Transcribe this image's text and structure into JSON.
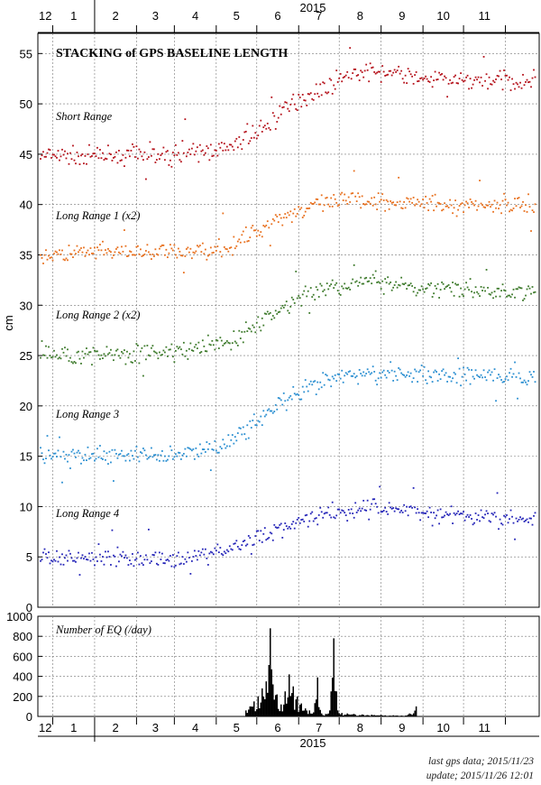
{
  "chart_data": [
    {
      "type": "scatter",
      "title": "STACKING of GPS BASELINE LENGTH",
      "year_label": "2015",
      "ylabel": "cm",
      "ylim": [
        0,
        57
      ],
      "yticks": [
        0,
        5,
        10,
        15,
        20,
        25,
        30,
        35,
        40,
        45,
        50,
        55
      ],
      "x_month_labels": [
        "12",
        "1",
        "2",
        "3",
        "4",
        "5",
        "6",
        "7",
        "8",
        "9",
        "10",
        "11"
      ],
      "x_range": [
        "2014-11-20",
        "2015-11-26"
      ],
      "grid": true,
      "series": [
        {
          "name": "Short Range",
          "color": "#b5121b",
          "x": [
            "2014-12-01",
            "2015-01-01",
            "2015-02-01",
            "2015-03-01",
            "2015-03-20",
            "2015-04-10",
            "2015-04-25",
            "2015-05-10",
            "2015-05-25",
            "2015-06-10",
            "2015-06-25",
            "2015-07-05",
            "2015-07-25",
            "2015-08-15",
            "2015-09-01",
            "2015-09-20",
            "2015-10-10",
            "2015-11-01",
            "2015-11-23"
          ],
          "y": [
            44.8,
            44.8,
            44.9,
            44.8,
            45.2,
            45.6,
            46.5,
            48.0,
            50.0,
            51.0,
            51.8,
            53.0,
            53.2,
            53.0,
            52.4,
            52.3,
            52.4,
            52.3,
            52.2
          ]
        },
        {
          "name": "Long Range 1 (x2)",
          "color": "#e8701e",
          "x": [
            "2014-12-01",
            "2015-01-01",
            "2015-02-01",
            "2015-03-01",
            "2015-03-25",
            "2015-04-15",
            "2015-05-01",
            "2015-05-20",
            "2015-06-10",
            "2015-07-01",
            "2015-07-20",
            "2015-08-15",
            "2015-09-10",
            "2015-10-10",
            "2015-11-01",
            "2015-11-23"
          ],
          "y": [
            35.0,
            35.2,
            35.3,
            35.2,
            35.5,
            36.0,
            37.4,
            38.8,
            39.8,
            40.3,
            40.5,
            40.3,
            40.0,
            40.0,
            40.0,
            40.0
          ]
        },
        {
          "name": "Long Range 2 (x2)",
          "color": "#3d7a2b",
          "x": [
            "2014-12-01",
            "2015-01-01",
            "2015-02-01",
            "2015-03-01",
            "2015-03-25",
            "2015-04-15",
            "2015-05-01",
            "2015-05-20",
            "2015-06-10",
            "2015-07-01",
            "2015-07-20",
            "2015-08-15",
            "2015-09-10",
            "2015-10-10",
            "2015-11-01",
            "2015-11-23"
          ],
          "y": [
            25.0,
            25.2,
            25.2,
            25.4,
            25.8,
            26.6,
            28.0,
            29.8,
            31.2,
            32.0,
            32.3,
            32.2,
            31.6,
            31.4,
            31.3,
            31.4
          ]
        },
        {
          "name": "Long Range 3",
          "color": "#2b8fd1",
          "x": [
            "2014-12-01",
            "2015-01-01",
            "2015-02-01",
            "2015-03-01",
            "2015-03-25",
            "2015-04-15",
            "2015-05-01",
            "2015-05-20",
            "2015-06-10",
            "2015-07-01",
            "2015-07-20",
            "2015-08-15",
            "2015-09-10",
            "2015-10-10",
            "2015-11-01",
            "2015-11-23"
          ],
          "y": [
            15.0,
            15.1,
            15.1,
            15.2,
            15.6,
            16.8,
            18.4,
            20.3,
            21.8,
            22.8,
            23.2,
            23.4,
            23.1,
            22.9,
            22.8,
            22.8
          ]
        },
        {
          "name": "Long Range 4",
          "color": "#2424b8",
          "x": [
            "2014-12-01",
            "2015-01-01",
            "2015-02-01",
            "2015-03-01",
            "2015-03-25",
            "2015-04-15",
            "2015-05-01",
            "2015-05-20",
            "2015-06-10",
            "2015-07-01",
            "2015-07-20",
            "2015-08-15",
            "2015-09-10",
            "2015-10-10",
            "2015-11-01",
            "2015-11-23"
          ],
          "y": [
            4.9,
            5.0,
            4.9,
            4.9,
            5.2,
            5.9,
            6.8,
            8.0,
            9.0,
            9.6,
            9.8,
            9.8,
            9.2,
            8.9,
            8.8,
            8.8
          ]
        }
      ],
      "annotations": [
        "Short Range",
        "Long Range 1 (x2)",
        "Long Range 2 (x2)",
        "Long Range 3",
        "Long Range 4"
      ]
    },
    {
      "type": "bar",
      "title": "Number of EQ (/day)",
      "year_label": "2015",
      "ylim": [
        0,
        1000
      ],
      "yticks": [
        0,
        200,
        400,
        600,
        800,
        1000
      ],
      "x_month_labels": [
        "12",
        "1",
        "2",
        "3",
        "4",
        "5",
        "6",
        "7",
        "8",
        "9",
        "10",
        "11"
      ],
      "x_range": [
        "2014-11-20",
        "2015-11-26"
      ],
      "color": "#000000",
      "x": [
        "2015-04-23",
        "2015-04-26",
        "2015-04-29",
        "2015-05-02",
        "2015-05-05",
        "2015-05-08",
        "2015-05-11",
        "2015-05-13",
        "2015-05-16",
        "2015-05-19",
        "2015-05-22",
        "2015-05-25",
        "2015-05-28",
        "2015-05-31",
        "2015-06-03",
        "2015-06-06",
        "2015-06-09",
        "2015-06-12",
        "2015-06-15",
        "2015-06-18",
        "2015-06-21",
        "2015-06-24",
        "2015-06-27",
        "2015-06-30",
        "2015-07-03",
        "2015-07-07",
        "2015-07-12",
        "2015-07-18",
        "2015-07-25",
        "2015-08-01",
        "2015-08-10",
        "2015-08-20",
        "2015-08-27"
      ],
      "values": [
        60,
        100,
        150,
        200,
        280,
        350,
        880,
        320,
        220,
        120,
        250,
        420,
        300,
        200,
        130,
        80,
        60,
        40,
        390,
        30,
        25,
        60,
        780,
        60,
        35,
        30,
        25,
        20,
        18,
        15,
        12,
        10,
        100
      ]
    }
  ],
  "footer": {
    "last_data": "last gps data; 2015/11/23",
    "update": "update; 2015/11/26 12:01"
  }
}
